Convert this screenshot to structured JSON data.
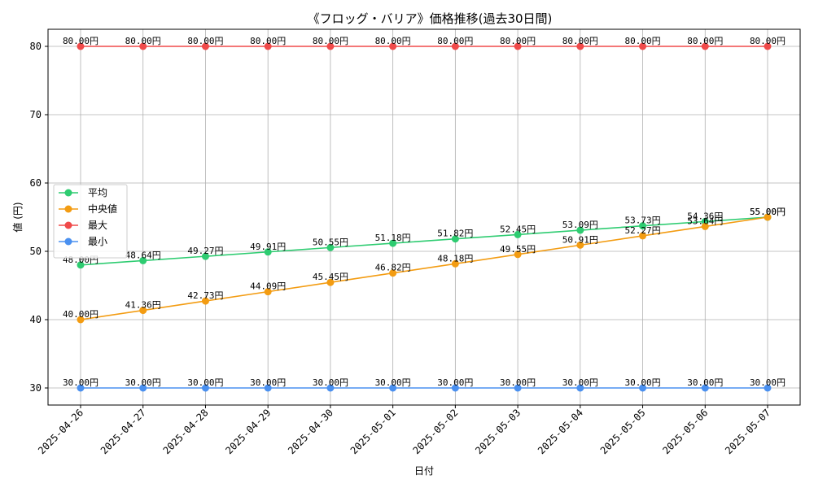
{
  "chart_data": {
    "type": "line",
    "title": "《フロッグ・バリア》価格推移(過去30日間)",
    "xlabel": "日付",
    "ylabel": "値 (円)",
    "categories": [
      "2025-04-26",
      "2025-04-27",
      "2025-04-28",
      "2025-04-29",
      "2025-04-30",
      "2025-05-01",
      "2025-05-02",
      "2025-05-03",
      "2025-05-04",
      "2025-05-05",
      "2025-05-06",
      "2025-05-07"
    ],
    "ylim": [
      27.5,
      82.5
    ],
    "yticks": [
      30,
      40,
      50,
      60,
      70,
      80
    ],
    "grid": true,
    "legend_position": "center-left",
    "label_suffix": "円",
    "series": [
      {
        "name": "平均",
        "color": "#2ecc71",
        "values": [
          48.0,
          48.64,
          49.27,
          49.91,
          50.55,
          51.18,
          51.82,
          52.45,
          53.09,
          53.73,
          54.36,
          55.0
        ]
      },
      {
        "name": "中央値",
        "color": "#f39c12",
        "values": [
          40.0,
          41.36,
          42.73,
          44.09,
          45.45,
          46.82,
          48.18,
          49.55,
          50.91,
          52.27,
          53.64,
          55.0
        ]
      },
      {
        "name": "最大",
        "color": "#f04a4a",
        "values": [
          80.0,
          80.0,
          80.0,
          80.0,
          80.0,
          80.0,
          80.0,
          80.0,
          80.0,
          80.0,
          80.0,
          80.0
        ]
      },
      {
        "name": "最小",
        "color": "#4a90f0",
        "values": [
          30.0,
          30.0,
          30.0,
          30.0,
          30.0,
          30.0,
          30.0,
          30.0,
          30.0,
          30.0,
          30.0,
          30.0
        ]
      }
    ]
  }
}
